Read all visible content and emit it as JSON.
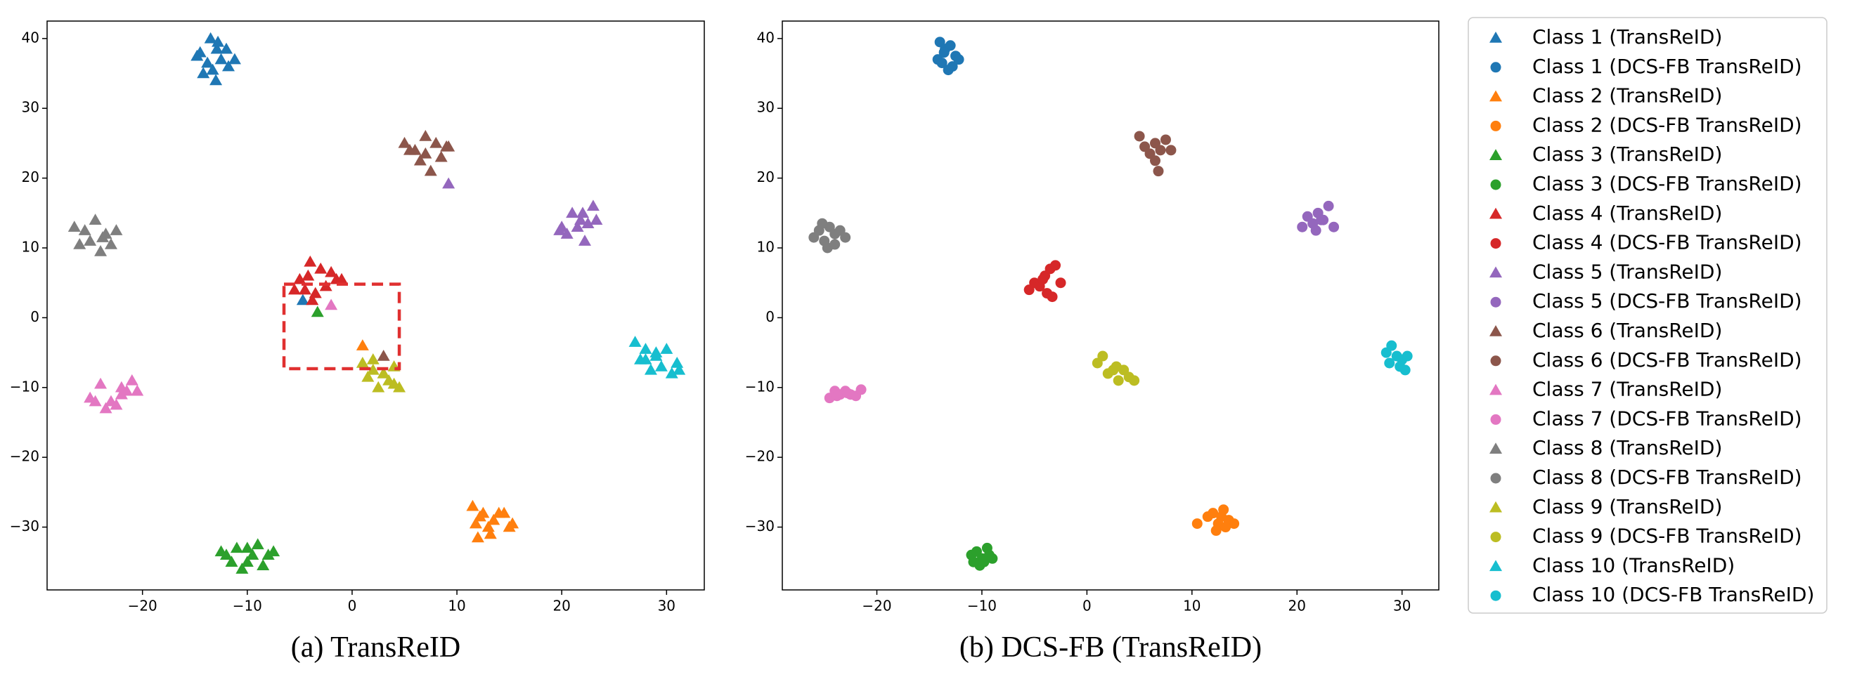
{
  "chart_data": [
    {
      "type": "scatter",
      "caption": "(a) TransReID",
      "marker": "triangle",
      "xlim": [
        -29.1,
        33.6
      ],
      "ylim": [
        -39,
        42.5
      ],
      "xticks": [
        {
          "value": -20,
          "label": "−20"
        },
        {
          "value": -10,
          "label": "−10"
        },
        0,
        10,
        20,
        30
      ],
      "yticks": [
        {
          "value": -30,
          "label": "−30"
        },
        {
          "value": -20,
          "label": "−20"
        },
        {
          "value": -10,
          "label": "−10"
        },
        0,
        10,
        20,
        30,
        40
      ],
      "highlight": {
        "x": [
          -6.5,
          4.5
        ],
        "y": [
          -7.3,
          4.8
        ],
        "color": "#e03030"
      },
      "series": [
        {
          "name": "Class 1 (TransReID)",
          "color": "#1f77b4",
          "x": [
            -14.5,
            -13.5,
            -12.8,
            -12,
            -13.8,
            -14.2,
            -12.5,
            -11.2,
            -13,
            -12.9,
            -14.8,
            -13.3,
            -11.8,
            -4.7
          ],
          "y": [
            38,
            40,
            39.5,
            38.5,
            36.5,
            35,
            37,
            37,
            34,
            38.5,
            37.5,
            35.5,
            36,
            2.5
          ]
        },
        {
          "name": "Class 2 (TransReID)",
          "color": "#ff7f0e",
          "x": [
            11.5,
            12.5,
            13,
            14,
            15,
            12,
            11.8,
            13.5,
            15.3,
            12.2,
            14.5,
            13.2,
            1
          ],
          "y": [
            -27,
            -28,
            -30,
            -28,
            -30,
            -31.5,
            -29.5,
            -29,
            -29.5,
            -28.5,
            -28,
            -31,
            -4
          ]
        },
        {
          "name": "Class 3 (TransReID)",
          "color": "#2ca02c",
          "x": [
            -12,
            -11,
            -10,
            -9,
            -8,
            -10.5,
            -11.5,
            -9.5,
            -12.5,
            -8.5,
            -10,
            -7.5,
            -3.3
          ],
          "y": [
            -34,
            -33,
            -35,
            -32.5,
            -34,
            -36,
            -35,
            -34,
            -33.5,
            -35.5,
            -33,
            -33.5,
            0.8
          ]
        },
        {
          "name": "Class 4 (TransReID)",
          "color": "#d62728",
          "x": [
            -4,
            -3,
            -2,
            -1,
            -5,
            -4.5,
            -3.5,
            -2.5,
            -5.5,
            -1.5,
            -3.8,
            -4.2
          ],
          "y": [
            8,
            7,
            6.5,
            5.5,
            5.5,
            4,
            3.5,
            4.5,
            4,
            5.5,
            2.5,
            6
          ]
        },
        {
          "name": "Class 5 (TransReID)",
          "color": "#9467bd",
          "x": [
            20,
            21,
            22,
            23,
            23.3,
            21.5,
            20.5,
            22.5,
            19.8,
            22.2,
            21.8,
            9.2
          ],
          "y": [
            13,
            15,
            15,
            16,
            14,
            13,
            12,
            13.5,
            12.5,
            11,
            14,
            19.2
          ]
        },
        {
          "name": "Class 6 (TransReID)",
          "color": "#8c564b",
          "x": [
            5,
            6,
            7,
            8,
            9,
            6.5,
            7.5,
            8.5,
            5.5,
            9.2,
            7,
            3
          ],
          "y": [
            25,
            24,
            26,
            25,
            24.5,
            22.5,
            21,
            23,
            24,
            24.5,
            23.5,
            -5.5
          ]
        },
        {
          "name": "Class 7 (TransReID)",
          "color": "#e377c2",
          "x": [
            -24,
            -23,
            -22,
            -21,
            -20.5,
            -25,
            -23.5,
            -22.5,
            -21.5,
            -24.5,
            -22,
            -2
          ],
          "y": [
            -9.5,
            -12,
            -10,
            -9,
            -10.5,
            -11.5,
            -13,
            -12.5,
            -10.5,
            -12,
            -11,
            1.8
          ]
        },
        {
          "name": "Class 8 (TransReID)",
          "color": "#7f7f7f",
          "x": [
            -26.5,
            -25.5,
            -24.5,
            -23.5,
            -23,
            -25,
            -24,
            -22.5,
            -26,
            -23.8
          ],
          "y": [
            13,
            12.5,
            14,
            12,
            10.5,
            11,
            9.5,
            12.5,
            10.5,
            11.5
          ]
        },
        {
          "name": "Class 9 (TransReID)",
          "color": "#bcbd22",
          "x": [
            1,
            2,
            3,
            4,
            4.5,
            2.5,
            3.5,
            1.5,
            4,
            2,
            3
          ],
          "y": [
            -6.5,
            -7.5,
            -8,
            -7,
            -10,
            -10,
            -9,
            -8.5,
            -9.5,
            -6,
            -8
          ]
        },
        {
          "name": "Class 10 (TransReID)",
          "color": "#17becf",
          "x": [
            27,
            28,
            29,
            30,
            31,
            27.5,
            28.5,
            29.5,
            30.5,
            31.2,
            29,
            28
          ],
          "y": [
            -3.5,
            -4.5,
            -5,
            -4.5,
            -6.5,
            -6,
            -7.5,
            -7,
            -8,
            -7.5,
            -5.5,
            -6
          ]
        }
      ]
    },
    {
      "type": "scatter",
      "caption": "(b) DCS-FB (TransReID)",
      "marker": "circle",
      "xlim": [
        -29,
        33.5
      ],
      "ylim": [
        -39,
        42.5
      ],
      "xticks": [
        {
          "value": -20,
          "label": "−20"
        },
        {
          "value": -10,
          "label": "−10"
        },
        0,
        10,
        20,
        30
      ],
      "yticks": [
        {
          "value": -30,
          "label": "−30"
        },
        {
          "value": -20,
          "label": "−20"
        },
        {
          "value": -10,
          "label": "−10"
        },
        0,
        10,
        20,
        30,
        40
      ],
      "series": [
        {
          "name": "Class 1 (DCS-FB TransReID)",
          "color": "#1f77b4",
          "x": [
            -14,
            -13.5,
            -13,
            -12.5,
            -14.2,
            -13.8,
            -12.8,
            -12.2,
            -13.2,
            -13.6
          ],
          "y": [
            39.5,
            38.5,
            39,
            37.5,
            37,
            36.5,
            36,
            37,
            35.5,
            38
          ]
        },
        {
          "name": "Class 2 (DCS-FB TransReID)",
          "color": "#ff7f0e",
          "x": [
            10.5,
            11.5,
            12,
            12.5,
            13,
            13.5,
            14,
            12.3,
            12.8,
            13.2
          ],
          "y": [
            -29.5,
            -28.5,
            -28,
            -29.5,
            -27.5,
            -29,
            -29.5,
            -30.5,
            -28.5,
            -30
          ]
        },
        {
          "name": "Class 3 (DCS-FB TransReID)",
          "color": "#2ca02c",
          "x": [
            -11,
            -10.5,
            -10,
            -9.5,
            -9,
            -10.2,
            -9.8,
            -10.8,
            -9.3
          ],
          "y": [
            -34,
            -33.5,
            -34.5,
            -33,
            -34.5,
            -35.5,
            -35,
            -35,
            -34
          ]
        },
        {
          "name": "Class 4 (DCS-FB TransReID)",
          "color": "#d62728",
          "x": [
            -5.5,
            -5,
            -4.5,
            -4,
            -3.5,
            -3,
            -2.5,
            -4.2,
            -3.8,
            -3.3
          ],
          "y": [
            4,
            5,
            4.5,
            6,
            7,
            7.5,
            5,
            5.5,
            3.5,
            3
          ]
        },
        {
          "name": "Class 5 (DCS-FB TransReID)",
          "color": "#9467bd",
          "x": [
            20.5,
            21,
            21.5,
            22,
            22.5,
            23,
            23.5,
            21.8,
            22.3
          ],
          "y": [
            13,
            14.5,
            13.5,
            15,
            14,
            16,
            13,
            12.5,
            14
          ]
        },
        {
          "name": "Class 6 (DCS-FB TransReID)",
          "color": "#8c564b",
          "x": [
            5,
            5.5,
            6,
            6.5,
            7,
            7.5,
            8,
            6.8,
            6.5
          ],
          "y": [
            26,
            24.5,
            23.5,
            25,
            24,
            25.5,
            24,
            21,
            22.5
          ]
        },
        {
          "name": "Class 7 (DCS-FB TransReID)",
          "color": "#e377c2",
          "x": [
            -24.5,
            -24,
            -23.5,
            -23,
            -22.5,
            -22,
            -21.5,
            -23.8,
            -22.8
          ],
          "y": [
            -11.5,
            -10.5,
            -11,
            -10.5,
            -11,
            -11.2,
            -10.3,
            -11.2,
            -10.8
          ]
        },
        {
          "name": "Class 8 (DCS-FB TransReID)",
          "color": "#7f7f7f",
          "x": [
            -26,
            -25.5,
            -25,
            -24.5,
            -24,
            -23.5,
            -23,
            -24.7,
            -25.2,
            -24
          ],
          "y": [
            11.5,
            12.5,
            11,
            13,
            12,
            12.5,
            11.5,
            10,
            13.5,
            10.5
          ]
        },
        {
          "name": "Class 9 (DCS-FB TransReID)",
          "color": "#bcbd22",
          "x": [
            1,
            1.5,
            2,
            2.5,
            3,
            3.5,
            4,
            4.5,
            2.8
          ],
          "y": [
            -6.5,
            -5.5,
            -8,
            -7.5,
            -9,
            -7.5,
            -8.5,
            -9,
            -7
          ]
        },
        {
          "name": "Class 10 (DCS-FB TransReID)",
          "color": "#17becf",
          "x": [
            28.5,
            29,
            29.5,
            30,
            30.5,
            28.8,
            29.8,
            30.3
          ],
          "y": [
            -5,
            -4,
            -5.5,
            -6,
            -5.5,
            -6.5,
            -7,
            -7.5
          ]
        }
      ]
    }
  ]
}
